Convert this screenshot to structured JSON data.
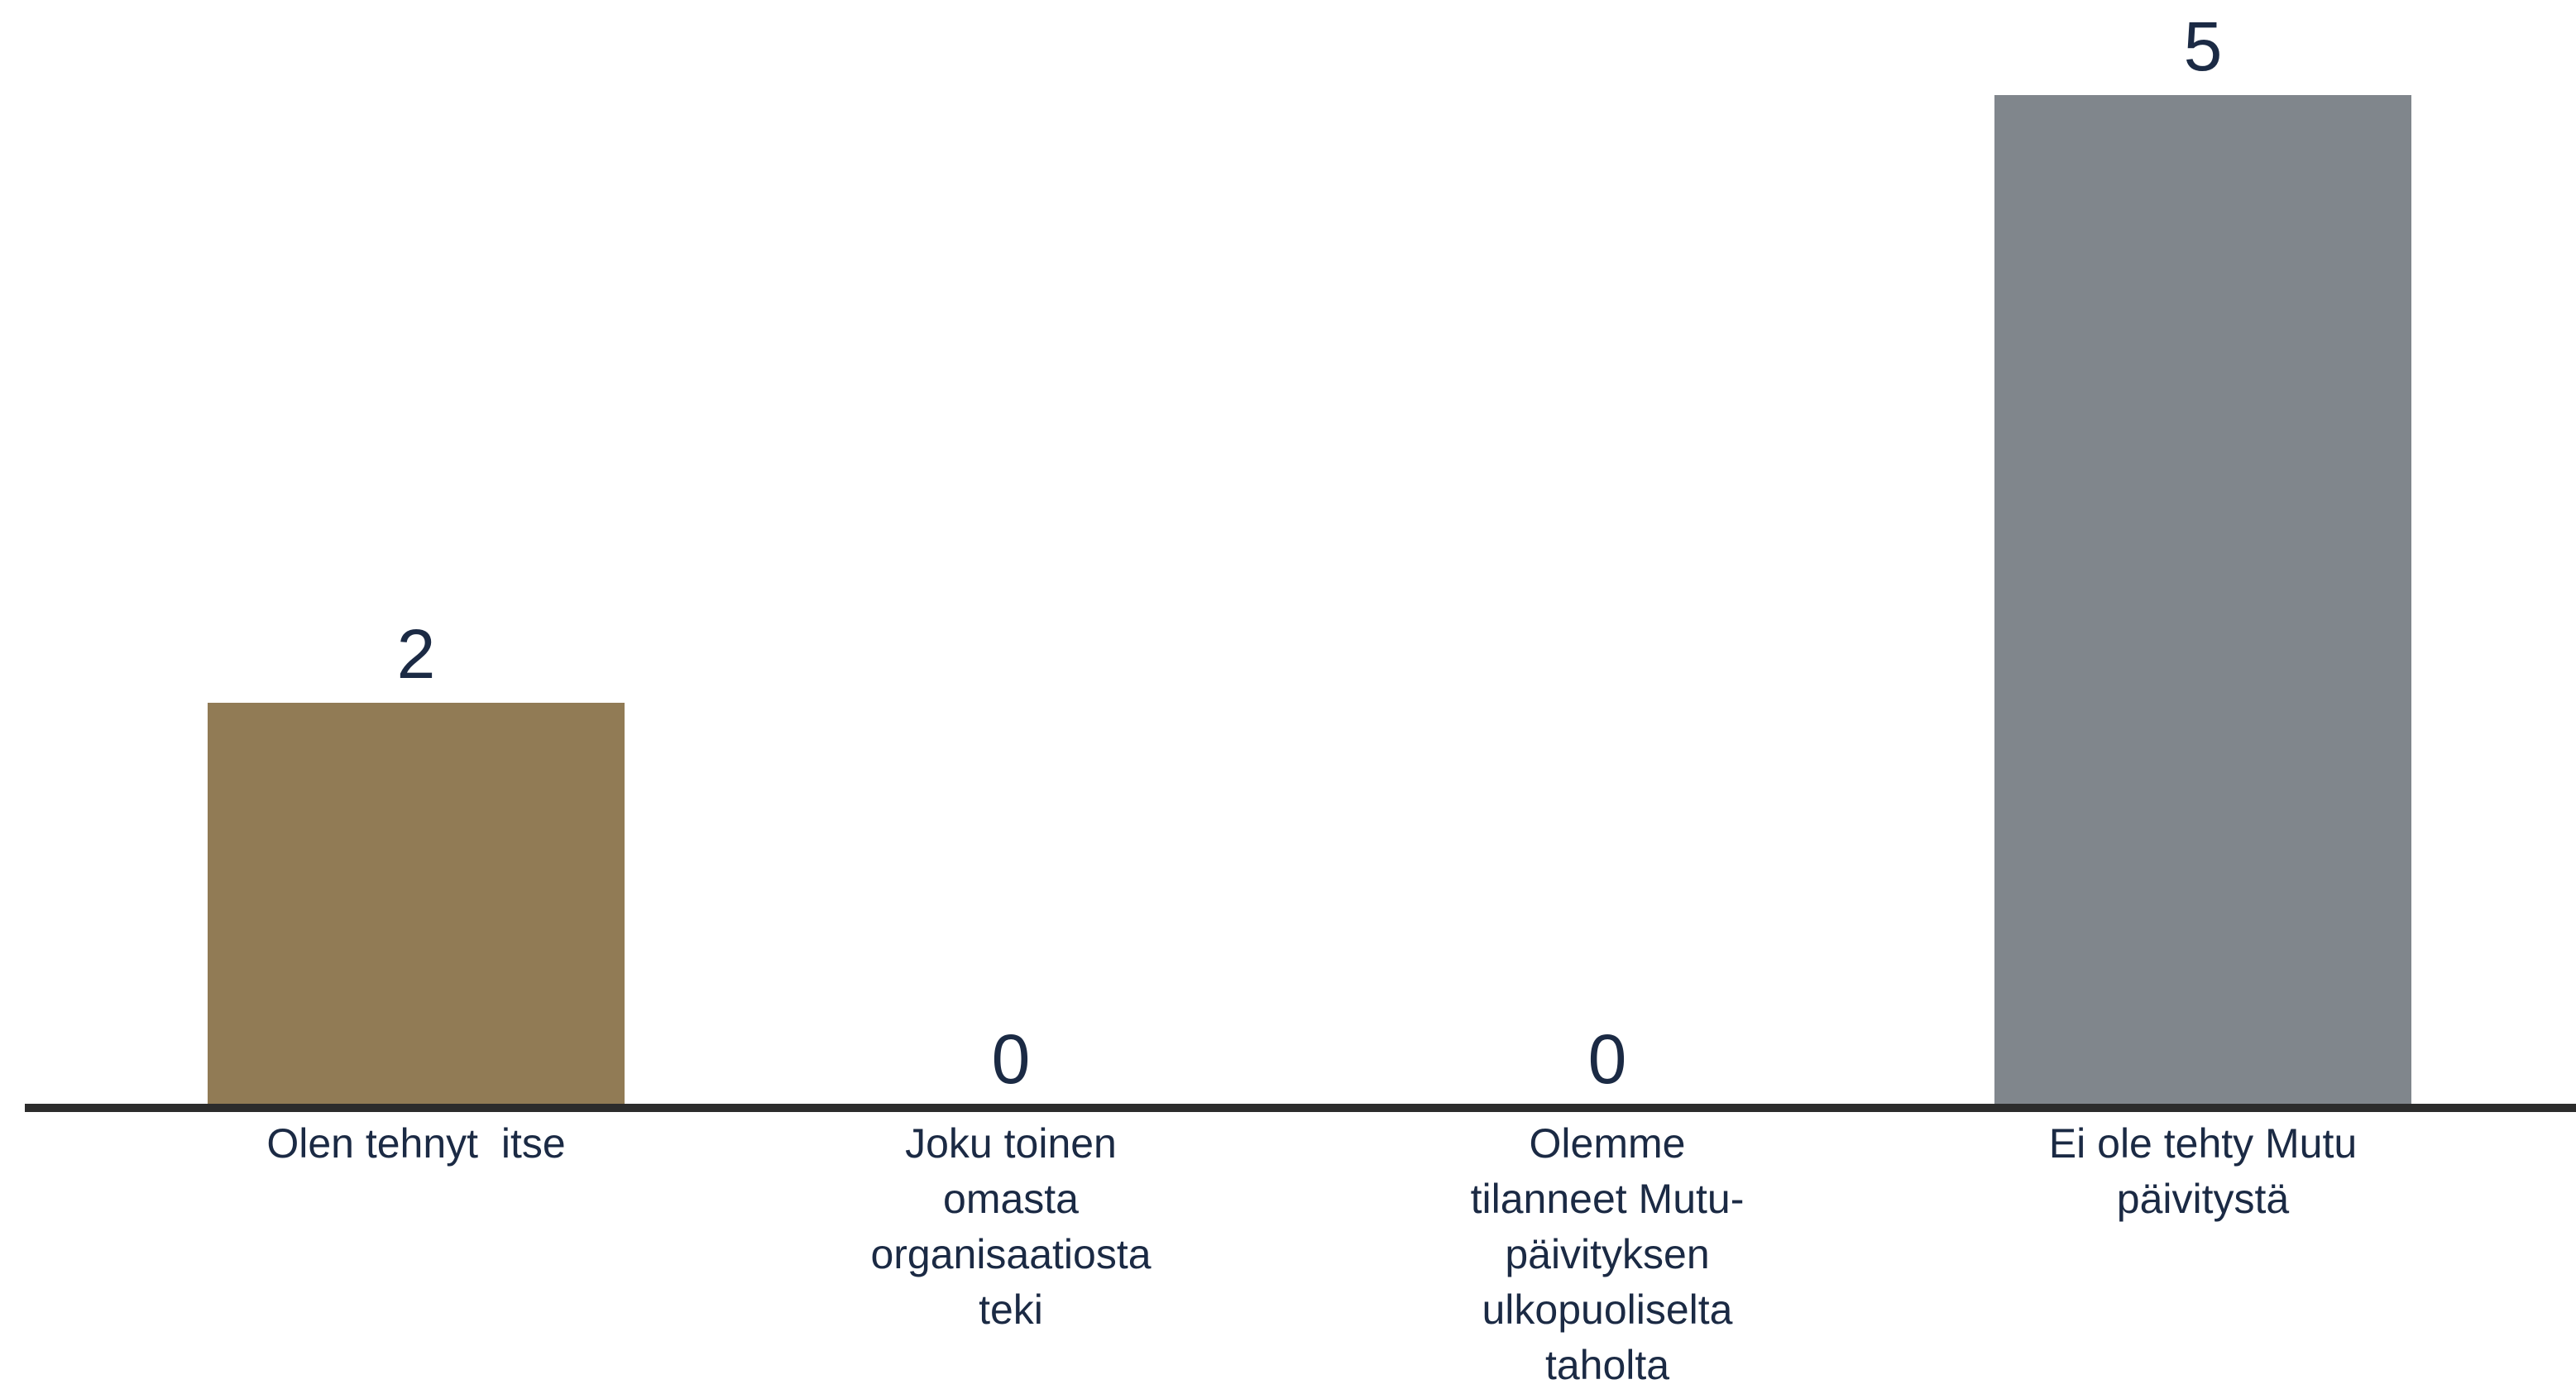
{
  "chart_data": {
    "type": "bar",
    "categories": [
      [
        "Olen tehnyt  itse"
      ],
      [
        "Joku toinen",
        "omasta",
        "organisaatiosta",
        "teki"
      ],
      [
        "Olemme",
        "tilanneet Mutu-",
        "päivityksen",
        "ulkopuoliselta",
        "taholta"
      ],
      [
        "Ei ole tehty Mutu",
        "päivitystä"
      ]
    ],
    "values": [
      2,
      0,
      0,
      5
    ],
    "value_labels": [
      "2",
      "0",
      "0",
      "5"
    ],
    "bar_colors": [
      "#917b55",
      "#917b55",
      "#80868c",
      "#80868c"
    ],
    "axis_color": "#2c2c2c",
    "text_color": "#1b2a44",
    "ylim": [
      0,
      5
    ],
    "grid": false,
    "legend": "none"
  }
}
